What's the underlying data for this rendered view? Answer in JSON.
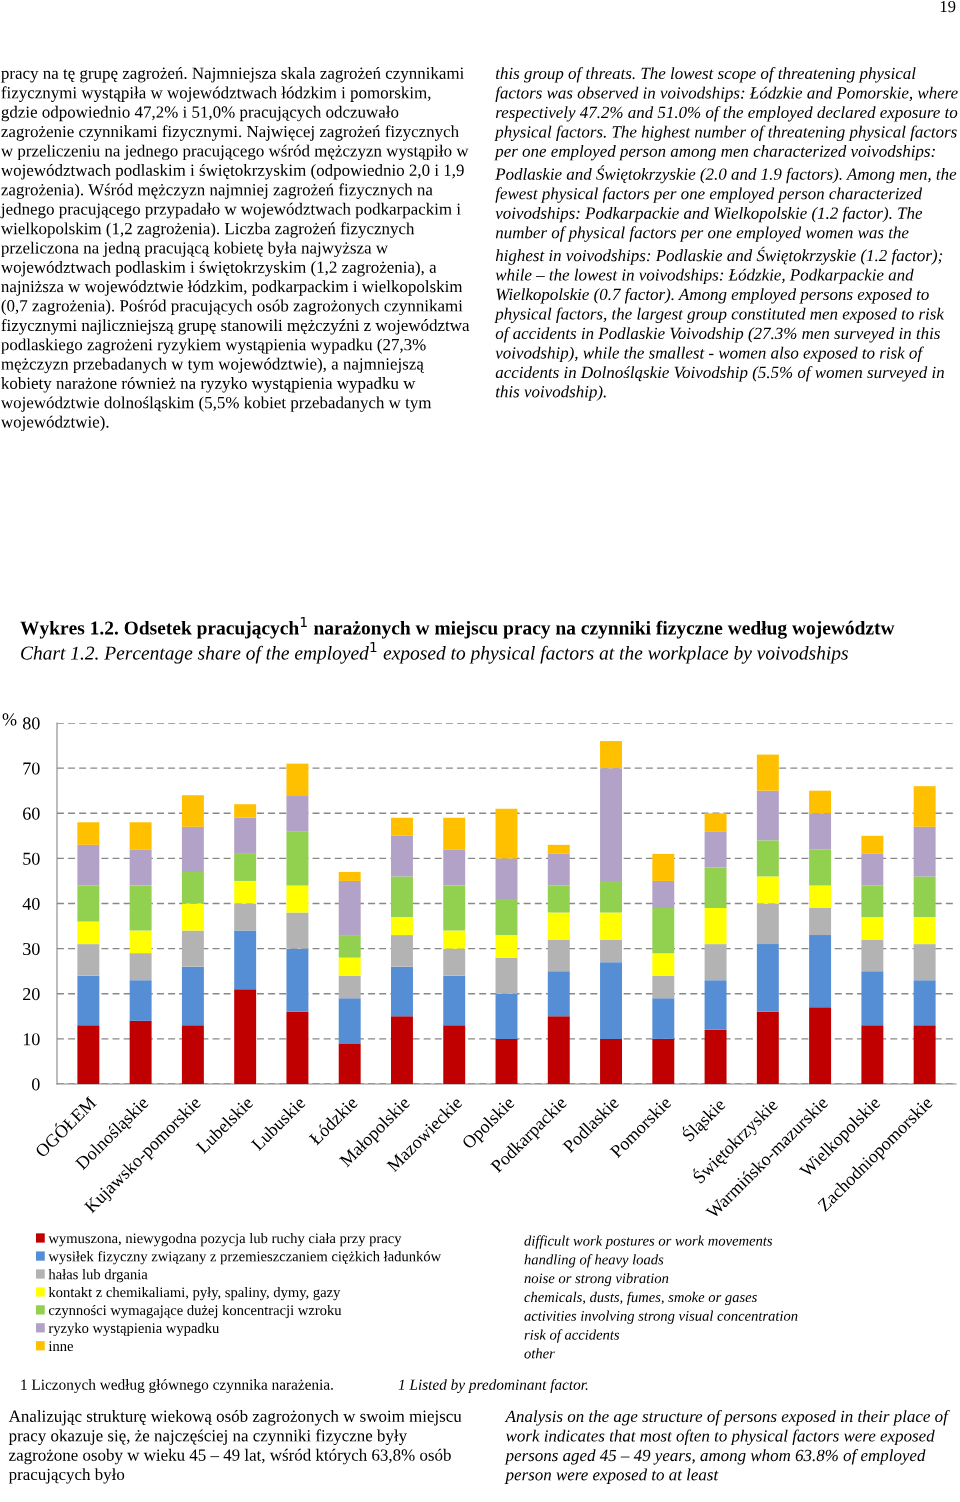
{
  "chart_data": {
    "type": "bar",
    "stacked": true,
    "title": "Wykres 1.2. Odsetek pracujących$^{1}$ narażonych w miejscu pracy na czynniki fizyczne według województw",
    "subtitle": "Chart 1.2. Percentage share of the employed$^{1}$ exposed to physical factors at the workplace by voivodships",
    "ylabel": "%",
    "categories": [
      "OGÓŁEM",
      "Dolnośląskie",
      "Kujawsko-pomorskie",
      "Lubelskie",
      "Lubuskie",
      "Łódzkie",
      "Małopolskie",
      "Mazowieckie",
      "Opolskie",
      "Podkarpackie",
      "Podlaskie",
      "Pomorskie",
      "Śląskie",
      "Świętokrzyskie",
      "Warmińsko-mazurskie",
      "Wielkopolskie",
      "Zachodniopomorskie"
    ],
    "series": [
      {
        "name": "wymuszona, niewygodna pozycja lub ruchy ciała przy pracy",
        "color": "#c00000",
        "values": [
          13,
          14,
          13,
          21,
          16,
          9,
          15,
          13,
          10,
          15,
          10,
          10,
          12,
          16,
          17,
          13,
          13
        ]
      },
      {
        "name": "wysiłek fizyczny związany z przemieszczaniem ciężkich ładunków",
        "color": "#558ed5",
        "values": [
          11,
          9,
          13,
          13,
          14,
          10,
          11,
          11,
          10,
          10,
          17,
          9,
          11,
          15,
          16,
          12,
          10
        ]
      },
      {
        "name": "hałas lub drgania",
        "color": "#b3b3b3",
        "values": [
          7,
          6,
          8,
          6,
          8,
          5,
          7,
          6,
          8,
          7,
          5,
          5,
          8,
          9,
          6,
          7,
          8
        ]
      },
      {
        "name": "kontakt z chemikaliami, pyły, spaliny, dymy, gazy",
        "color": "#ffff00",
        "values": [
          5,
          5,
          6,
          5,
          6,
          4,
          4,
          4,
          5,
          6,
          6,
          5,
          8,
          6,
          5,
          5,
          6
        ]
      },
      {
        "name": "czynności wymagające dużej koncentracji wzroku",
        "color": "#92d050",
        "values": [
          8,
          10,
          7,
          6,
          12,
          5,
          9,
          10,
          8,
          6,
          7,
          10,
          9,
          8,
          8,
          7,
          9
        ]
      },
      {
        "name": "ryzyko wystąpienia wypadku",
        "color": "#b3a2c7",
        "values": [
          9,
          8,
          10,
          8,
          8,
          12,
          9,
          8,
          9,
          7,
          25,
          6,
          8,
          11,
          8,
          7,
          11
        ]
      },
      {
        "name": "inne",
        "color": "#ffc000",
        "values": [
          5,
          6,
          7,
          3,
          7,
          2,
          4,
          7,
          11,
          2,
          6,
          6,
          4,
          8,
          5,
          4,
          9
        ]
      }
    ],
    "ylim": [
      0,
      80
    ],
    "yticks": [
      0,
      10,
      20,
      30,
      40,
      50,
      60,
      70,
      80
    ],
    "grid": "y",
    "legend": "bottom",
    "annotations": [
      "19",
      "pracy na tę grupę zagrożeń. Najmniejsza skala zagrożeń czynnikami fizycznymi wystąpiła w województwach łódzkim i pomorskim, gdzie odpowiednio 47,2% i 51,0% pracujących odczuwało zagrożenie czynnikami fizycznymi. Najwięcej zagrożeń fizycznych w przeliczeniu na jednego pracującego wśród mężczyzn wystąpiło w województwach podlaskim i świętokrzyskim (odpowiednio 2,0 i 1,9 zagrożenia). Wśród mężczyzn najmniej zagrożeń fizycznych na jednego pracującego przypadało w województwach podkarpackim i wielkopolskim (1,2 zagrożenia). Liczba zagrożeń fizycznych przeliczona na jedną pracującą kobietę była najwyższa w województwach podlaskim i świętokrzyskim (1,2 zagrożenia), a najniższa w województwie łódzkim, podkarpackim i wielkopolskim (0,7 zagrożenia). Pośród pracujących osób zagrożonych czynnikami fizycznymi najliczniejszą grupę stanowili mężczyźni z województwa podlaskiego zagrożeni ryzykiem wystąpienia wypadku (27,3% mężczyzn przebadanych w tym województwie), a najmniejszą kobiety narażone również na ryzyko wystąpienia wypadku w województwie dolnośląskim (5,5% kobiet przebadanych w tym województwie).",
      "this group of threats. The lowest scope of threatening physical factors was observed in voivodships: Łódzkie and Pomorskie, where respectively 47.2% and 51.0% of the employed declared exposure to physical factors. The highest number of threatening physical factors per one employed person among men characterized voivodships: Podlaskie and Świętokrzyskie (2.0 and 1.9 factors). Among men, the fewest physical factors per one employed person characterized voivodships: Podkarpackie and Wielkopolskie (1.2 factor). The number of physical factors per one employed women was the highest in voivodships: Podlaskie and Świętokrzyskie (1.2 factor); while – the lowest in voivodships: Łódzkie, Podkarpackie and Wielkopolskie (0.7 factor). Among employed persons exposed to physical factors, the largest group constituted men exposed to risk of accidents in Podlaskie Voivodship (27.3% men surveyed in this voivodship), while the smallest - women also exposed to risk of accidents in Dolnośląskie Voivodship (5.5% of women surveyed in this voivodship).",
      "difficult work postures or work movements",
      "handling of heavy loads",
      "noise or strong vibration",
      "chemicals, dusts, fumes, smoke or gases",
      "activities involving strong visual concentration",
      "risk of accidents",
      "other",
      "1 Liczonych według głównego czynnika narażenia.",
      "1 Listed by predominant factor.",
      "Analizując strukturę wiekową osób zagrożonych w swoim miejscu pracy okazuje się, że najczęściej na czynniki fizyczne były zagrożone osoby w wieku 45 – 49 lat, wśród których 63,8% osób pracujących było",
      "Analysis on the age structure of persons exposed in their place of work indicates that most often to physical factors were exposed persons aged 45 – 49 years, among whom 63.8% of employed person were exposed to at least"
    ]
  }
}
